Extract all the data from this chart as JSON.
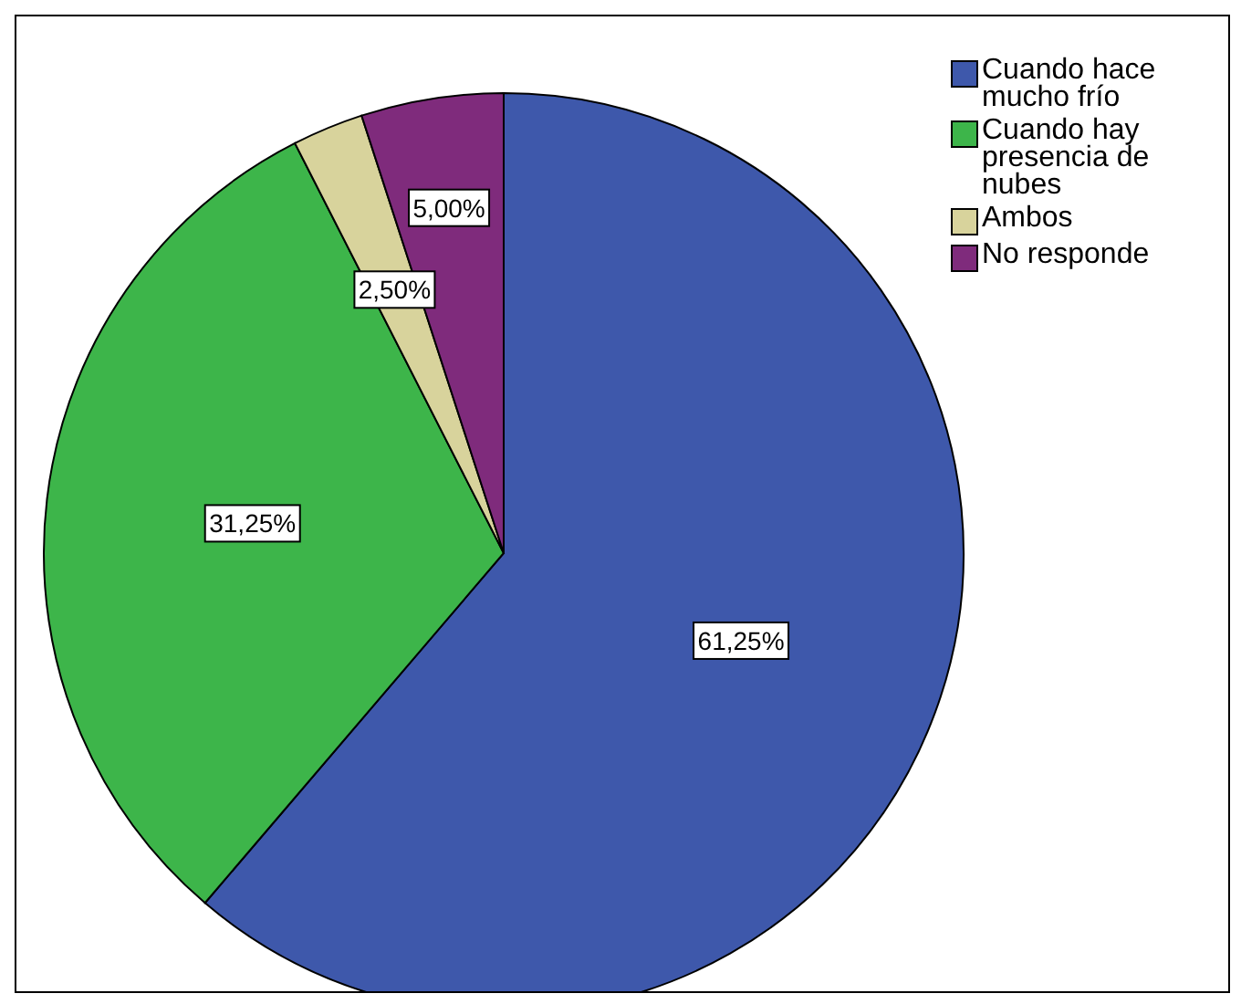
{
  "chart_data": {
    "type": "pie",
    "categories": [
      "Cuando hace mucho frío",
      "Cuando hay presencia de nubes",
      "Ambos",
      "No responde"
    ],
    "values": [
      61.25,
      31.25,
      2.5,
      5
    ],
    "colors": [
      "#3e58ab",
      "#3db54a",
      "#d8d39c",
      "#7f2b7c"
    ],
    "value_labels": [
      "61,25%",
      "31,25%",
      "2,50%",
      "5,00%"
    ],
    "legend": "top right"
  }
}
